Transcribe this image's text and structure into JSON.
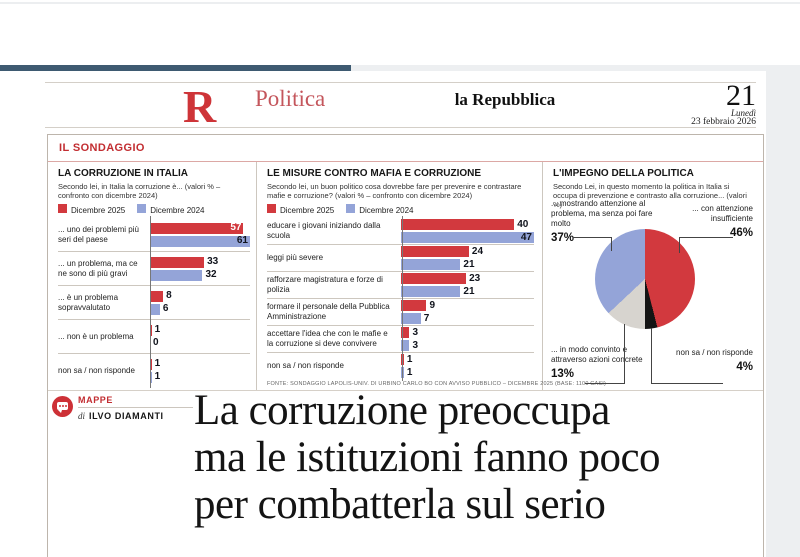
{
  "page": {
    "logo": "R",
    "section": "Politica",
    "masthead": "la Repubblica",
    "page_number": "21",
    "day": "Lunedì",
    "date": "23 febbraio 2026"
  },
  "sondaggio": {
    "label": "IL SONDAGGIO"
  },
  "mappe": {
    "rubric": "MAPPE",
    "byline_prefix": "di",
    "author": "ILVO DIAMANTI"
  },
  "headline": {
    "line1": "La corruzione preoccupa",
    "line2": "ma le istituzioni fanno poco",
    "line3": "per combatterla sul serio"
  },
  "colors": {
    "accent_red": "#d2393e",
    "legend_blue": "#94a4d8",
    "topbar_blue": "#3e5a71"
  },
  "chart_data": [
    {
      "type": "bar",
      "title": "LA CORRUZIONE IN ITALIA",
      "subtitle": "Secondo lei, in Italia la corruzione è... (valori % – confronto con dicembre 2024)",
      "legend": [
        "Dicembre 2025",
        "Dicembre 2024"
      ],
      "categories": [
        "... uno dei problemi più seri del paese",
        "... un problema, ma ce ne sono di più gravi",
        "... è un problema sopravvalutato",
        "... non è un problema",
        "non sa / non risponde"
      ],
      "series": [
        {
          "name": "Dicembre 2025",
          "color": "#d2393e",
          "values": [
            57,
            33,
            8,
            1,
            1
          ]
        },
        {
          "name": "Dicembre 2024",
          "color": "#94a4d8",
          "values": [
            61,
            32,
            6,
            0,
            1
          ]
        }
      ],
      "xmax": 61
    },
    {
      "type": "bar",
      "title": "LE MISURE CONTRO MAFIA E CORRUZIONE",
      "subtitle": "Secondo lei, un buon politico cosa dovrebbe fare per prevenire e contrastare mafie e corruzione? (valori % – confronto con dicembre 2024)",
      "legend": [
        "Dicembre 2025",
        "Dicembre 2024"
      ],
      "categories": [
        "educare i giovani iniziando dalla scuola",
        "leggi più severe",
        "rafforzare magistratura e forze di polizia",
        "formare il personale della Pubblica Amministrazione",
        "accettare l'idea che con le mafie e la corruzione si deve convivere",
        "non sa / non risponde"
      ],
      "series": [
        {
          "name": "Dicembre 2025",
          "color": "#d2393e",
          "values": [
            40,
            24,
            23,
            9,
            3,
            1
          ]
        },
        {
          "name": "Dicembre 2024",
          "color": "#94a4d8",
          "values": [
            47,
            21,
            21,
            7,
            3,
            1
          ]
        }
      ],
      "xmax": 47,
      "source": "FONTE: SONDAGGIO LAPOLIS-UNIV. DI URBINO CARLO BO CON AVVISO PUBBLICO – DICEMBRE 2025 (BASE: 1100 CASI)"
    },
    {
      "type": "pie",
      "title": "L'IMPEGNO DELLA POLITICA",
      "subtitle": "Secondo Lei, in questo momento la politica in Italia si occupa di prevenzione e contrasto alla corruzione... (valori %)",
      "slices": [
        {
          "label": "... con attenzione insufficiente",
          "pct_label": "46%",
          "value": 46,
          "color": "#d2393e"
        },
        {
          "label": "non sa / non risponde",
          "pct_label": "4%",
          "value": 4,
          "color": "#141414"
        },
        {
          "label": "... in modo convinto e attraverso azioni concrete",
          "pct_label": "13%",
          "value": 13,
          "color": "#d7d4cf"
        },
        {
          "label": "... mostrando attenzione al problema, ma senza poi fare molto",
          "pct_label": "37%",
          "value": 37,
          "color": "#94a4d8"
        }
      ]
    }
  ]
}
